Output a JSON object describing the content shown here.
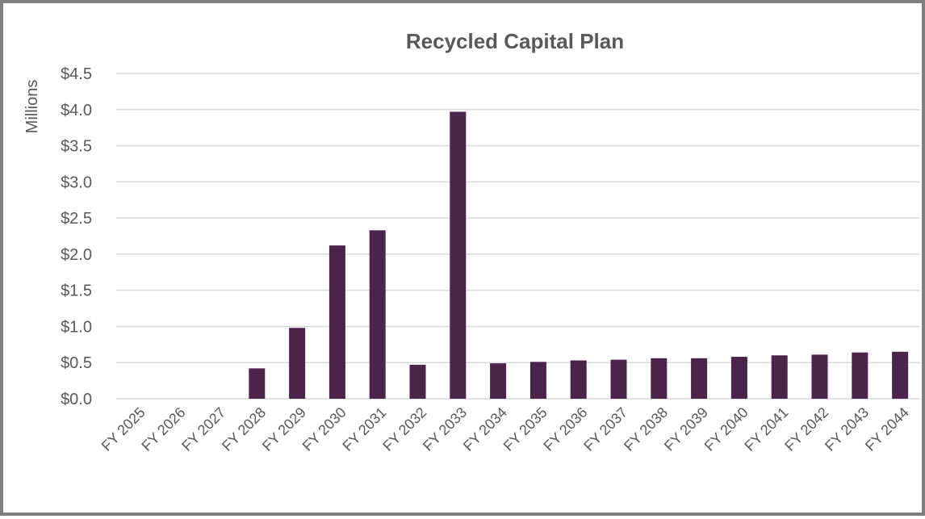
{
  "chart_data": {
    "type": "bar",
    "title": "Recycled Capital Plan",
    "ylabel": "Millions",
    "xlabel": "",
    "categories": [
      "FY 2025",
      "FY 2026",
      "FY 2027",
      "FY 2028",
      "FY 2029",
      "FY 2030",
      "FY 2031",
      "FY 2032",
      "FY 2033",
      "FY 2034",
      "FY 2035",
      "FY 2036",
      "FY 2037",
      "FY 2038",
      "FY 2039",
      "FY 2040",
      "FY 2041",
      "FY 2042",
      "FY 2043",
      "FY 2044"
    ],
    "values": [
      0,
      0,
      0,
      0.42,
      0.98,
      2.12,
      2.33,
      0.47,
      3.97,
      0.49,
      0.51,
      0.53,
      0.54,
      0.56,
      0.56,
      0.58,
      0.6,
      0.61,
      0.64,
      0.65
    ],
    "ylim": [
      0,
      4.5
    ],
    "yticks": [
      0,
      0.5,
      1.0,
      1.5,
      2.0,
      2.5,
      3.0,
      3.5,
      4.0,
      4.5
    ],
    "ytick_labels": [
      "$0.0",
      "$0.5",
      "$1.0",
      "$1.5",
      "$2.0",
      "$2.5",
      "$3.0",
      "$3.5",
      "$4.0",
      "$4.5"
    ],
    "bar_color": "#4a2449",
    "grid": true,
    "legend": "none"
  }
}
